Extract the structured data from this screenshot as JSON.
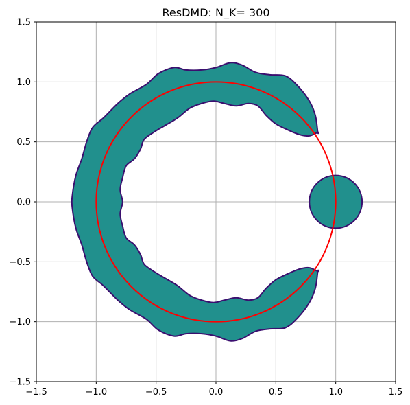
{
  "chart_data": {
    "type": "contour",
    "title": "ResDMD: N_K= 300",
    "xlabel": "",
    "ylabel": "",
    "xlim": [
      -1.5,
      1.5
    ],
    "ylim": [
      -1.5,
      1.5
    ],
    "grid": true,
    "aspect": "equal",
    "x_ticks": [
      -1.5,
      -1.0,
      -0.5,
      0.0,
      0.5,
      1.0,
      1.5
    ],
    "y_ticks": [
      -1.5,
      -1.0,
      -0.5,
      0.0,
      0.5,
      1.0,
      1.5
    ],
    "x_tick_labels": [
      "−1.5",
      "−1.0",
      "−0.5",
      "0.0",
      "0.5",
      "1.0",
      "1.5"
    ],
    "y_tick_labels": [
      "−1.5",
      "−1.0",
      "−0.5",
      "0.0",
      "0.5",
      "1.0",
      "1.5"
    ],
    "colors": {
      "fill": "#21908d",
      "edge": "#3b0f6f",
      "unit_circle": "#ff0000",
      "grid": "#b0b0b0"
    },
    "unit_circle": {
      "center": [
        0,
        0
      ],
      "radius": 1.0
    },
    "regions": [
      {
        "name": "",
        "kind": "annulus-arc",
        "outer": [
          [
            0.85,
            0.58
          ],
          [
            0.83,
            0.72
          ],
          [
            0.78,
            0.84
          ],
          [
            0.68,
            0.97
          ],
          [
            0.58,
            1.05
          ],
          [
            0.45,
            1.06
          ],
          [
            0.33,
            1.08
          ],
          [
            0.22,
            1.14
          ],
          [
            0.12,
            1.16
          ],
          [
            0.0,
            1.12
          ],
          [
            -0.12,
            1.1
          ],
          [
            -0.25,
            1.1
          ],
          [
            -0.35,
            1.12
          ],
          [
            -0.48,
            1.07
          ],
          [
            -0.58,
            0.98
          ],
          [
            -0.72,
            0.9
          ],
          [
            -0.82,
            0.82
          ],
          [
            -0.94,
            0.7
          ],
          [
            -1.03,
            0.62
          ],
          [
            -1.08,
            0.5
          ],
          [
            -1.12,
            0.36
          ],
          [
            -1.17,
            0.22
          ],
          [
            -1.2,
            0.05
          ],
          [
            -1.2,
            -0.05
          ],
          [
            -1.17,
            -0.22
          ],
          [
            -1.12,
            -0.36
          ],
          [
            -1.08,
            -0.5
          ],
          [
            -1.03,
            -0.62
          ],
          [
            -0.94,
            -0.7
          ],
          [
            -0.82,
            -0.82
          ],
          [
            -0.72,
            -0.9
          ],
          [
            -0.58,
            -0.98
          ],
          [
            -0.48,
            -1.07
          ],
          [
            -0.35,
            -1.12
          ],
          [
            -0.25,
            -1.1
          ],
          [
            -0.12,
            -1.1
          ],
          [
            0.0,
            -1.12
          ],
          [
            0.12,
            -1.16
          ],
          [
            0.22,
            -1.14
          ],
          [
            0.33,
            -1.08
          ],
          [
            0.45,
            -1.06
          ],
          [
            0.58,
            -1.05
          ],
          [
            0.68,
            -0.97
          ],
          [
            0.78,
            -0.84
          ],
          [
            0.83,
            -0.72
          ],
          [
            0.85,
            -0.58
          ]
        ],
        "inner": [
          [
            0.85,
            -0.58
          ],
          [
            0.78,
            -0.55
          ],
          [
            0.7,
            -0.56
          ],
          [
            0.6,
            -0.6
          ],
          [
            0.5,
            -0.65
          ],
          [
            0.42,
            -0.72
          ],
          [
            0.35,
            -0.8
          ],
          [
            0.27,
            -0.82
          ],
          [
            0.17,
            -0.8
          ],
          [
            0.07,
            -0.82
          ],
          [
            -0.02,
            -0.84
          ],
          [
            -0.12,
            -0.82
          ],
          [
            -0.22,
            -0.78
          ],
          [
            -0.32,
            -0.7
          ],
          [
            -0.42,
            -0.64
          ],
          [
            -0.52,
            -0.58
          ],
          [
            -0.6,
            -0.52
          ],
          [
            -0.63,
            -0.44
          ],
          [
            -0.68,
            -0.36
          ],
          [
            -0.75,
            -0.3
          ],
          [
            -0.78,
            -0.2
          ],
          [
            -0.8,
            -0.1
          ],
          [
            -0.78,
            0.0
          ],
          [
            -0.8,
            0.1
          ],
          [
            -0.78,
            0.2
          ],
          [
            -0.75,
            0.3
          ],
          [
            -0.68,
            0.36
          ],
          [
            -0.63,
            0.44
          ],
          [
            -0.6,
            0.52
          ],
          [
            -0.52,
            0.58
          ],
          [
            -0.42,
            0.64
          ],
          [
            -0.32,
            0.7
          ],
          [
            -0.22,
            0.78
          ],
          [
            -0.12,
            0.82
          ],
          [
            -0.02,
            0.84
          ],
          [
            0.07,
            0.82
          ],
          [
            0.17,
            0.8
          ],
          [
            0.27,
            0.82
          ],
          [
            0.35,
            0.8
          ],
          [
            0.42,
            0.72
          ],
          [
            0.5,
            0.65
          ],
          [
            0.6,
            0.6
          ],
          [
            0.7,
            0.56
          ],
          [
            0.78,
            0.55
          ],
          [
            0.85,
            0.58
          ]
        ]
      },
      {
        "name": "",
        "kind": "disk",
        "center": [
          1.0,
          0.0
        ],
        "radius": 0.22
      }
    ]
  }
}
